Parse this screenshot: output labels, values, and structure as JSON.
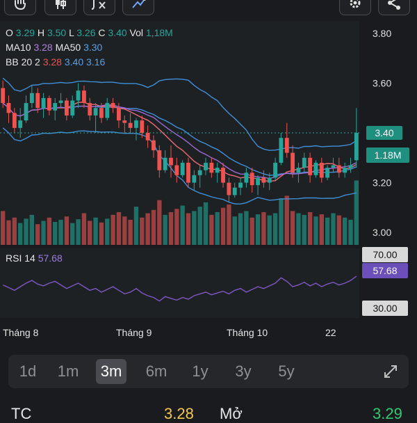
{
  "ohlc": {
    "o_label": "O",
    "o": "3.29",
    "h_label": "H",
    "h": "3.50",
    "l_label": "L",
    "l": "3.26",
    "c_label": "C",
    "c": "3.40",
    "vol_label": "Vol",
    "vol": "1,18M"
  },
  "ma": {
    "ma10_label": "MA10",
    "ma10": "3.28",
    "ma50_label": "MA50",
    "ma50": "3.30"
  },
  "bb": {
    "label": "BB 20 2",
    "upper": "3.28",
    "mid": "3.40",
    "lower": "3.16"
  },
  "rsi": {
    "label": "RSI 14",
    "value": "57.68"
  },
  "price_badge": "3.40",
  "vol_badge": "1.18M",
  "rsi_badges": {
    "upper": "70.00",
    "value": "57.68",
    "lower": "30.00"
  },
  "timeframes": [
    {
      "label": "1d"
    },
    {
      "label": "1m"
    },
    {
      "label": "3m",
      "active": true
    },
    {
      "label": "6m"
    },
    {
      "label": "1y"
    },
    {
      "label": "3y"
    },
    {
      "label": "5y"
    }
  ],
  "stats": {
    "tc_label": "TC",
    "tc_value": "3.28",
    "open_label": "Mở",
    "open_value": "3.29"
  },
  "colors": {
    "up": "#26a69a",
    "down": "#ef5350",
    "bb": "#3f8fd8",
    "ma10": "#ef6b73",
    "ma50": "#9c6ad6",
    "rsi": "#7e57c2",
    "bg": "#1a1b1e"
  },
  "chart_data": {
    "type": "candlestick",
    "x_labels": [
      "Tháng 8",
      "Tháng 9",
      "Tháng 10",
      "22"
    ],
    "y_ticks": [
      "3.80",
      "3.60",
      "3.40",
      "3.20",
      "3.00"
    ],
    "ylim": [
      2.95,
      3.85
    ],
    "candles": [
      [
        3.58,
        3.61,
        3.5,
        3.52
      ],
      [
        3.52,
        3.55,
        3.44,
        3.48
      ],
      [
        3.48,
        3.5,
        3.4,
        3.42
      ],
      [
        3.42,
        3.5,
        3.38,
        3.45
      ],
      [
        3.45,
        3.55,
        3.44,
        3.52
      ],
      [
        3.52,
        3.59,
        3.5,
        3.56
      ],
      [
        3.56,
        3.58,
        3.48,
        3.5
      ],
      [
        3.5,
        3.56,
        3.46,
        3.54
      ],
      [
        3.54,
        3.55,
        3.47,
        3.49
      ],
      [
        3.49,
        3.54,
        3.45,
        3.52
      ],
      [
        3.52,
        3.56,
        3.5,
        3.53
      ],
      [
        3.53,
        3.54,
        3.45,
        3.47
      ],
      [
        3.47,
        3.55,
        3.46,
        3.53
      ],
      [
        3.53,
        3.6,
        3.5,
        3.57
      ],
      [
        3.57,
        3.59,
        3.5,
        3.52
      ],
      [
        3.52,
        3.54,
        3.45,
        3.47
      ],
      [
        3.47,
        3.52,
        3.4,
        3.5
      ],
      [
        3.5,
        3.52,
        3.44,
        3.46
      ],
      [
        3.46,
        3.54,
        3.45,
        3.52
      ],
      [
        3.52,
        3.54,
        3.48,
        3.5
      ],
      [
        3.5,
        3.52,
        3.42,
        3.45
      ],
      [
        3.45,
        3.47,
        3.4,
        3.44
      ],
      [
        3.44,
        3.48,
        3.4,
        3.42
      ],
      [
        3.42,
        3.46,
        3.37,
        3.45
      ],
      [
        3.45,
        3.47,
        3.38,
        3.4
      ],
      [
        3.4,
        3.43,
        3.34,
        3.37
      ],
      [
        3.37,
        3.39,
        3.3,
        3.33
      ],
      [
        3.33,
        3.35,
        3.22,
        3.25
      ],
      [
        3.25,
        3.33,
        3.24,
        3.3
      ],
      [
        3.3,
        3.35,
        3.22,
        3.27
      ],
      [
        3.27,
        3.3,
        3.2,
        3.23
      ],
      [
        3.23,
        3.29,
        3.22,
        3.28
      ],
      [
        3.28,
        3.3,
        3.18,
        3.2
      ],
      [
        3.2,
        3.25,
        3.17,
        3.23
      ],
      [
        3.23,
        3.27,
        3.18,
        3.25
      ],
      [
        3.25,
        3.3,
        3.23,
        3.28
      ],
      [
        3.28,
        3.3,
        3.22,
        3.24
      ],
      [
        3.24,
        3.28,
        3.2,
        3.26
      ],
      [
        3.26,
        3.28,
        3.18,
        3.2
      ],
      [
        3.2,
        3.22,
        3.12,
        3.15
      ],
      [
        3.15,
        3.2,
        3.14,
        3.18
      ],
      [
        3.18,
        3.22,
        3.15,
        3.2
      ],
      [
        3.2,
        3.26,
        3.18,
        3.24
      ],
      [
        3.24,
        3.26,
        3.16,
        3.19
      ],
      [
        3.19,
        3.23,
        3.15,
        3.22
      ],
      [
        3.22,
        3.25,
        3.18,
        3.2
      ],
      [
        3.2,
        3.24,
        3.17,
        3.22
      ],
      [
        3.22,
        3.3,
        3.21,
        3.28
      ],
      [
        3.28,
        3.4,
        3.27,
        3.38
      ],
      [
        3.38,
        3.44,
        3.3,
        3.32
      ],
      [
        3.32,
        3.35,
        3.22,
        3.24
      ],
      [
        3.24,
        3.28,
        3.2,
        3.26
      ],
      [
        3.26,
        3.32,
        3.24,
        3.3
      ],
      [
        3.3,
        3.32,
        3.2,
        3.23
      ],
      [
        3.23,
        3.29,
        3.22,
        3.28
      ],
      [
        3.28,
        3.3,
        3.2,
        3.22
      ],
      [
        3.22,
        3.27,
        3.21,
        3.26
      ],
      [
        3.26,
        3.3,
        3.24,
        3.27
      ],
      [
        3.27,
        3.3,
        3.22,
        3.24
      ],
      [
        3.24,
        3.28,
        3.22,
        3.26
      ],
      [
        3.26,
        3.3,
        3.24,
        3.27
      ],
      [
        3.29,
        3.5,
        3.26,
        3.4
      ]
    ],
    "volume": [
      0.62,
      0.45,
      0.5,
      0.4,
      0.48,
      0.55,
      0.38,
      0.44,
      0.5,
      0.42,
      0.46,
      0.52,
      0.4,
      0.47,
      0.58,
      0.44,
      0.5,
      0.41,
      0.48,
      0.55,
      0.6,
      0.52,
      0.46,
      0.7,
      0.5,
      0.58,
      0.64,
      0.82,
      0.55,
      0.6,
      0.66,
      0.72,
      0.58,
      0.62,
      0.7,
      0.78,
      0.55,
      0.6,
      0.68,
      0.74,
      0.52,
      0.58,
      0.62,
      0.5,
      0.56,
      0.6,
      0.54,
      0.58,
      0.85,
      0.9,
      0.62,
      0.58,
      0.55,
      0.6,
      0.52,
      0.56,
      0.5,
      0.58,
      0.54,
      0.5,
      0.46,
      1.18
    ],
    "rsi": [
      48,
      45,
      42,
      46,
      50,
      53,
      49,
      47,
      50,
      52,
      48,
      44,
      47,
      50,
      46,
      42,
      44,
      40,
      43,
      46,
      42,
      38,
      40,
      44,
      39,
      36,
      34,
      30,
      35,
      33,
      31,
      34,
      32,
      36,
      38,
      40,
      37,
      39,
      41,
      38,
      42,
      44,
      40,
      43,
      46,
      44,
      47,
      50,
      56,
      52,
      46,
      48,
      51,
      47,
      50,
      46,
      49,
      51,
      48,
      50,
      53,
      57.68
    ],
    "rsi_levels": [
      70,
      30
    ]
  }
}
